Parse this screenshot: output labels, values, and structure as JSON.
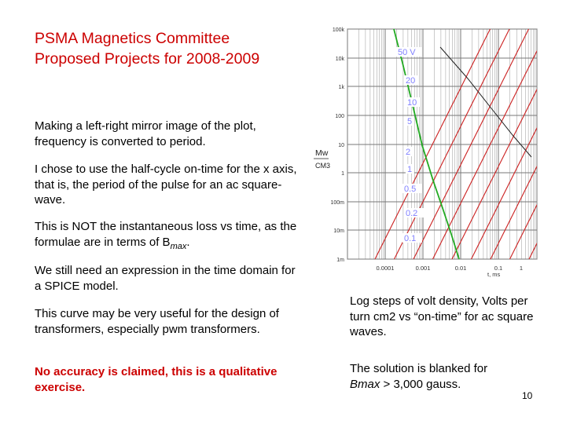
{
  "slide": {
    "title_line1": "PSMA Magnetics Committee",
    "title_line2": "Proposed Projects for 2008-2009",
    "para1": "Making a left-right mirror image of the plot, frequency is converted to period.",
    "para2": "I chose to use the half-cycle on-time for the x axis, that is, the period of the pulse for an ac square-wave.",
    "para3_main": "This is NOT the instantaneous loss vs time, as the formulae are in terms of B",
    "para3_sub": "max",
    "para3_end": ".",
    "para4": "We still need an expression in the time domain for a SPICE model.",
    "para5": "This curve may be very useful for the design of transformers, especially pwm transformers.",
    "warning": "No accuracy is claimed, this is a qualitative exercise.",
    "caption1": "Log steps of volt density, Volts per turn cm2 vs “on-time” for ac square waves.",
    "caption2_pre": "The solution is blanked for",
    "caption2_b": "Bmax",
    "caption2_post": " > 3,000 gauss.",
    "page_number": "10"
  },
  "chart_data": {
    "type": "line",
    "xscale": "log",
    "yscale": "log",
    "xlabel": "t, ms",
    "ylabel_top": "Mw",
    "ylabel_bottom": "CM3",
    "x_ticks": [
      "0.0001",
      "0.001",
      "0.01",
      "0.1",
      "1"
    ],
    "y_ticks": [
      "100k",
      "10k",
      "1k",
      "100",
      "10",
      "1",
      "100m",
      "10m",
      "1m"
    ],
    "series_labels": [
      "50 V",
      "20",
      "10",
      "5",
      "2",
      "1",
      "0.5",
      "0.2",
      "0.1"
    ],
    "colors": {
      "series": "#cc2222",
      "boundary": "#22aa22",
      "grid": "#999999",
      "labels": "#8080ff"
    }
  }
}
